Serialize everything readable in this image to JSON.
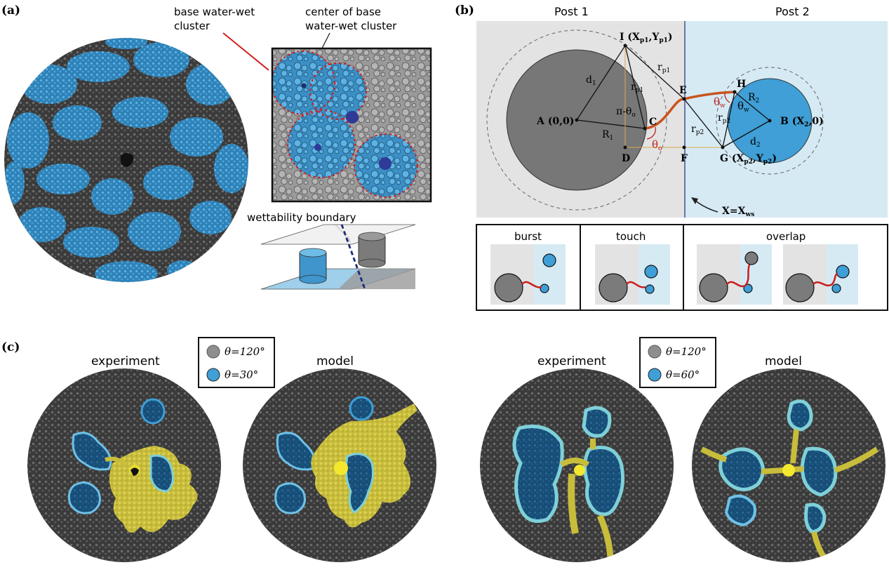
{
  "figure": {
    "panel_a": {
      "label": "(a)",
      "callout_base_cluster": [
        "base water-wet",
        "cluster"
      ],
      "callout_center": [
        "center of base",
        "water-wet cluster"
      ],
      "callout_boundary": "wettability boundary"
    },
    "panel_b": {
      "label": "(b)",
      "post1_title": "Post 1",
      "post2_title": "Post 2",
      "points": {
        "A": "A (0,0)",
        "B": "B (X",
        "B_sub": "2",
        "B_tail": ",0)",
        "C": "C",
        "D": "D",
        "E": "E",
        "F": "F",
        "G": "G (X",
        "G_sub": "p2",
        "G_mid": ",Y",
        "G_tail": ")",
        "H": "H",
        "I": "I (X",
        "I_sub": "p1",
        "I_mid": ",Y",
        "I_tail": ")"
      },
      "labels": {
        "d1": "d",
        "d1_sub": "1",
        "d2": "d",
        "d2_sub": "2",
        "R1": "R",
        "R1_sub": "1",
        "R2": "R",
        "R2_sub": "2",
        "rp1": "r",
        "rp1_sub": "p1",
        "rp2": "r",
        "rp2_sub": "p2",
        "pi_theta": "π-θ",
        "pi_theta_sub": "o",
        "theta_o": "θ",
        "theta_o_sub": "o",
        "theta_w": "θ",
        "theta_w_sub": "w",
        "x_ws": "X=X",
        "x_ws_sub": "ws"
      },
      "modes": [
        "burst",
        "touch",
        "overlap"
      ]
    },
    "panel_c": {
      "label": "(c)",
      "left": {
        "experiment": "experiment",
        "model": "model",
        "legend": [
          {
            "text": "θ=120°",
            "color": "#8e8e8e"
          },
          {
            "text": "θ=30°",
            "color": "#3f9fd6"
          }
        ]
      },
      "right": {
        "experiment": "experiment",
        "model": "model",
        "legend": [
          {
            "text": "θ=120°",
            "color": "#8e8e8e"
          },
          {
            "text": "θ=60°",
            "color": "#3f9fd6"
          }
        ]
      }
    },
    "colors": {
      "blue": "#3f9fd6",
      "dark_blue": "#1d5c8a",
      "gray_post": "#7b7b7b",
      "invader": "#d9cf45",
      "meniscus": "#c9541e",
      "red": "#d02020",
      "bg_left": "#e3e3e3",
      "bg_right": "#d6eaf4"
    }
  }
}
